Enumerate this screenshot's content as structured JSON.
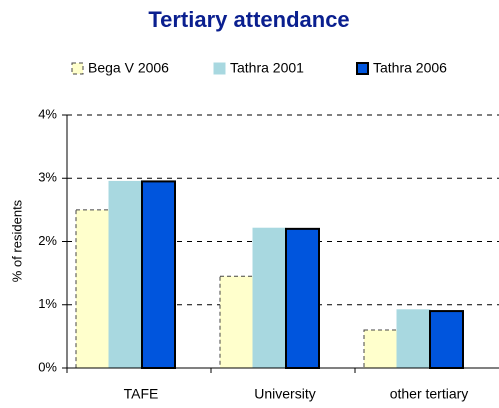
{
  "chart_data": {
    "type": "bar",
    "title": "Tertiary attendance",
    "y_label": "% of residents",
    "categories": [
      "TAFE",
      "University",
      "other tertiary"
    ],
    "series": [
      {
        "name": "Bega V 2006",
        "color": "#ffffcc",
        "values": [
          2.5,
          1.45,
          0.6
        ]
      },
      {
        "name": "Tathra 2001",
        "color": "#a8d8e0",
        "values": [
          2.95,
          2.21,
          0.92
        ]
      },
      {
        "name": "Tathra 2006",
        "color": "#0055dd",
        "values": [
          2.95,
          2.2,
          0.9
        ]
      }
    ],
    "ylim": [
      0,
      4
    ],
    "yticks": [
      {
        "value": 0,
        "label": "0%"
      },
      {
        "value": 1,
        "label": "1%"
      },
      {
        "value": 2,
        "label": "2%"
      },
      {
        "value": 3,
        "label": "3%"
      },
      {
        "value": 4,
        "label": "4%"
      }
    ],
    "grid": true,
    "legend": "top"
  }
}
